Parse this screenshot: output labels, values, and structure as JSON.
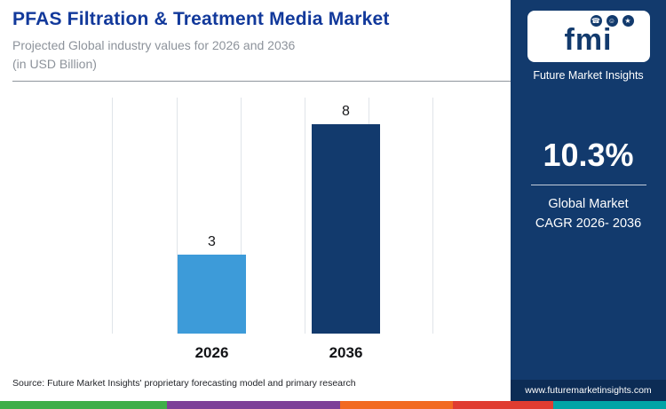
{
  "header": {
    "title": "PFAS Filtration & Treatment Media Market",
    "subtitle_line1": "Projected Global industry values for 2026 and 2036",
    "subtitle_line2": "(in USD Billion)"
  },
  "chart_data": {
    "type": "bar",
    "categories": [
      "2026",
      "2036"
    ],
    "values": [
      3,
      8
    ],
    "series_colors": [
      "#3d9bd9",
      "#123a6d"
    ],
    "title": "PFAS Filtration & Treatment Media Market",
    "xlabel": "",
    "ylabel": "USD Billion",
    "ylim": [
      0,
      9
    ],
    "grid": "vertical-light",
    "data_labels": [
      "3",
      "8"
    ]
  },
  "sidebar": {
    "logo_text": "fmi",
    "logo_icons": [
      "phone-icon",
      "person-icon",
      "megaphone-icon"
    ],
    "brand_name": "Future Market Insights",
    "cagr_value": "10.3%",
    "cagr_label_line1": "Global Market",
    "cagr_label_line2": "CAGR 2026- 2036",
    "website": "www.futuremarketinsights.com",
    "bg_color": "#123a6d"
  },
  "footer": {
    "source": "Source: Future Market Insights' proprietary forecasting model and primary research",
    "strip_colors": [
      "#3fae49",
      "#7d3f98",
      "#f26a21",
      "#e03c31",
      "#00a4a6"
    ],
    "strip_widths": [
      "25%",
      "26%",
      "17%",
      "15%",
      "17%"
    ]
  }
}
